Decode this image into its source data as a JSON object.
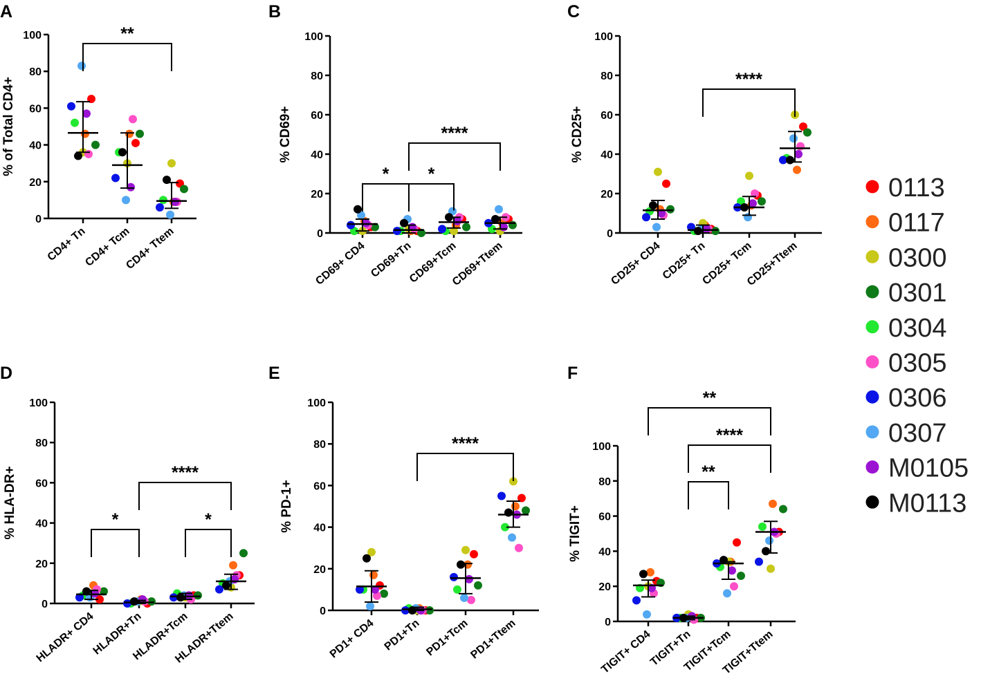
{
  "legend": [
    {
      "label": "0113",
      "color": "#ff0000"
    },
    {
      "label": "0117",
      "color": "#ff6a13"
    },
    {
      "label": "0300",
      "color": "#c8c81a"
    },
    {
      "label": "0301",
      "color": "#0e7a18"
    },
    {
      "label": "0304",
      "color": "#22e830"
    },
    {
      "label": "0305",
      "color": "#ff50c8"
    },
    {
      "label": "0306",
      "color": "#0a14e6"
    },
    {
      "label": "0307",
      "color": "#52a8f2"
    },
    {
      "label": "M0105",
      "color": "#9a14d2"
    },
    {
      "label": "M0113",
      "color": "#000000"
    }
  ],
  "chart_data": [
    {
      "panel": "A",
      "type": "scatter",
      "ylabel": "% of Total CD4+",
      "ylim": [
        0,
        100
      ],
      "yticks": [
        "0",
        "20",
        "40",
        "60",
        "80",
        "100"
      ],
      "categories": [
        "CD4+ Tn",
        "CD4+ Tcm",
        "CD4+ Ttem"
      ],
      "means": [
        46.5,
        29,
        9.5
      ],
      "sd_low": [
        36,
        16.5,
        5.5
      ],
      "sd_high": [
        63.5,
        46.5,
        19.5
      ],
      "values": [
        [
          65,
          46,
          36,
          40,
          52,
          35,
          61,
          83,
          57,
          34
        ],
        [
          41,
          46,
          30,
          46,
          36,
          54,
          22,
          10,
          17,
          36
        ],
        [
          19,
          9,
          30,
          16,
          10,
          9,
          6,
          2,
          9,
          21
        ]
      ],
      "significance": [
        {
          "from": 0,
          "to": 2,
          "label": "**"
        }
      ]
    },
    {
      "panel": "B",
      "type": "scatter",
      "ylabel": "% CD69+",
      "ylim": [
        0,
        100
      ],
      "yticks": [
        "0",
        "20",
        "40",
        "60",
        "80",
        "100"
      ],
      "categories": [
        "CD69+ CD4",
        "CD69+Tn",
        "CD69+Tcm",
        "CD69+Ttem"
      ],
      "means": [
        4.5,
        1.5,
        5.5,
        5
      ],
      "sd_low": [
        1,
        0,
        2.5,
        2
      ],
      "sd_high": [
        7,
        4,
        8,
        8
      ],
      "values": [
        [
          3,
          6,
          1,
          3,
          1,
          4,
          4,
          9,
          5,
          12
        ],
        [
          1,
          1,
          2,
          0,
          1,
          2,
          1,
          7,
          3,
          5
        ],
        [
          7,
          4,
          1,
          3,
          1,
          8,
          2,
          11,
          6,
          8
        ],
        [
          7,
          5,
          1,
          4,
          2,
          8,
          5,
          12,
          3,
          7
        ]
      ],
      "significance": [
        {
          "from": 1,
          "to": 3,
          "label": "****"
        },
        {
          "from": 0,
          "to": 1,
          "label": "*"
        },
        {
          "from": 1,
          "to": 2,
          "label": "*"
        }
      ]
    },
    {
      "panel": "C",
      "type": "scatter",
      "ylabel": "% CD25+",
      "ylim": [
        0,
        100
      ],
      "yticks": [
        "0",
        "20",
        "40",
        "60",
        "80",
        "100"
      ],
      "categories": [
        "CD25+ CD4",
        "CD25+ Tn",
        "CD25+ Tcm",
        "CD25+Ttem"
      ],
      "means": [
        11.5,
        1.5,
        13,
        43
      ],
      "sd_low": [
        7,
        0,
        9,
        36
      ],
      "sd_high": [
        16.5,
        4,
        18.5,
        51.5
      ],
      "values": [
        [
          25,
          12,
          31,
          12,
          11,
          9,
          8,
          3,
          10,
          14
        ],
        [
          2,
          4,
          5,
          1,
          1,
          2,
          3,
          2,
          2,
          1
        ],
        [
          19,
          14,
          29,
          16,
          16,
          20,
          13,
          8,
          15,
          13
        ],
        [
          54,
          32,
          60,
          51,
          38,
          44,
          37,
          48,
          40,
          37
        ]
      ],
      "significance": [
        {
          "from": 1,
          "to": 3,
          "label": "****"
        }
      ]
    },
    {
      "panel": "D",
      "type": "scatter",
      "ylabel": "% HLA-DR+",
      "ylim": [
        0,
        100
      ],
      "yticks": [
        "0",
        "20",
        "40",
        "60",
        "80",
        "100"
      ],
      "categories": [
        "HLADR+ CD4",
        "HLADR+Tn",
        "HLADR+Tcm",
        "HLADR+Ttem"
      ],
      "means": [
        4.5,
        0.5,
        3.5,
        11
      ],
      "sd_low": [
        2,
        0,
        2,
        7
      ],
      "sd_high": [
        6.5,
        1.5,
        5,
        14.5
      ],
      "values": [
        [
          2,
          9,
          5,
          6,
          4,
          7,
          3,
          3,
          5,
          6
        ],
        [
          0,
          2,
          1,
          1,
          0,
          1,
          0,
          1,
          2,
          1
        ],
        [
          4,
          3,
          3,
          4,
          5,
          2,
          3,
          4,
          4,
          3
        ],
        [
          14,
          19,
          8,
          25,
          10,
          14,
          7,
          11,
          12,
          9
        ]
      ],
      "significance": [
        {
          "from": 1,
          "to": 3,
          "label": "****"
        },
        {
          "from": 0,
          "to": 1,
          "label": "*"
        },
        {
          "from": 2,
          "to": 3,
          "label": "*"
        }
      ]
    },
    {
      "panel": "E",
      "type": "scatter",
      "ylabel": "% PD-1+",
      "ylim": [
        0,
        100
      ],
      "yticks": [
        "0",
        "20",
        "40",
        "60",
        "80",
        "100"
      ],
      "categories": [
        "PD1+ CD4",
        "PD1+Tn",
        "PD1+Tcm",
        "PD1+Ttem"
      ],
      "means": [
        11.5,
        0.5,
        15.5,
        46
      ],
      "sd_low": [
        4,
        0,
        8,
        40
      ],
      "sd_high": [
        19,
        1.5,
        22.5,
        52.5
      ],
      "values": [
        [
          12,
          17,
          28,
          8,
          10,
          7,
          10,
          2,
          10,
          25
        ],
        [
          0,
          1,
          0,
          0,
          1,
          0,
          0,
          1,
          0,
          0
        ],
        [
          27,
          22,
          29,
          12,
          10,
          5,
          16,
          6,
          15,
          22
        ],
        [
          54,
          50,
          62,
          48,
          40,
          30,
          55,
          35,
          46,
          47
        ]
      ],
      "significance": [
        {
          "from": 1,
          "to": 3,
          "label": "****"
        }
      ]
    },
    {
      "panel": "F",
      "type": "scatter",
      "ylabel": "% TIGIT+",
      "ylim": [
        0,
        100
      ],
      "yticks": [
        "0",
        "20",
        "40",
        "60",
        "80",
        "100"
      ],
      "categories": [
        "TIGIT+ CD4",
        "TIGIT+Tn",
        "TIGIT+Tcm",
        "TIGIT+Ttem"
      ],
      "means": [
        20.5,
        2,
        33,
        51
      ],
      "sd_low": [
        14,
        1,
        24,
        39
      ],
      "sd_high": [
        23.5,
        3,
        34,
        57
      ],
      "values": [
        [
          23,
          28,
          20,
          22,
          19,
          16,
          12,
          4,
          19,
          27
        ],
        [
          2,
          3,
          4,
          2,
          2,
          1,
          2,
          2,
          3,
          2
        ],
        [
          45,
          34,
          34,
          26,
          31,
          20,
          33,
          16,
          29,
          35
        ],
        [
          51,
          67,
          30,
          64,
          54,
          50,
          34,
          46,
          51,
          40
        ]
      ],
      "significance": [
        {
          "from": 0,
          "to": 3,
          "label": "**"
        },
        {
          "from": 1,
          "to": 3,
          "label": "****"
        },
        {
          "from": 1,
          "to": 2,
          "label": "**"
        }
      ]
    }
  ]
}
